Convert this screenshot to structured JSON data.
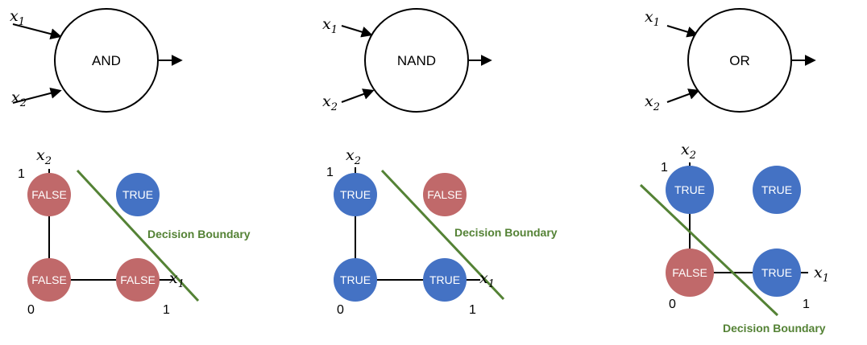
{
  "colors": {
    "true_node": "#4472c4",
    "false_node": "#c0696a",
    "boundary": "#548235",
    "axis": "#000000"
  },
  "panels": [
    {
      "gate": {
        "label": "AND",
        "inputs": [
          {
            "base": "x",
            "sub": "1"
          },
          {
            "base": "x",
            "sub": "2"
          }
        ]
      },
      "plot": {
        "axis_x": {
          "base": "x",
          "sub": "1"
        },
        "axis_y": {
          "base": "x",
          "sub": "2"
        },
        "tick_origin": "0",
        "tick_x": "1",
        "tick_y": "1",
        "nodes": [
          {
            "x1": 0,
            "x2": 1,
            "value": "FALSE"
          },
          {
            "x1": 1,
            "x2": 1,
            "value": "TRUE"
          },
          {
            "x1": 0,
            "x2": 0,
            "value": "FALSE"
          },
          {
            "x1": 1,
            "x2": 0,
            "value": "FALSE"
          }
        ],
        "boundary_label": "Decision Boundary"
      }
    },
    {
      "gate": {
        "label": "NAND",
        "inputs": [
          {
            "base": "x",
            "sub": "1"
          },
          {
            "base": "x",
            "sub": "2"
          }
        ]
      },
      "plot": {
        "axis_x": {
          "base": "x",
          "sub": "1"
        },
        "axis_y": {
          "base": "x",
          "sub": "2"
        },
        "tick_origin": "0",
        "tick_x": "1",
        "tick_y": "1",
        "nodes": [
          {
            "x1": 0,
            "x2": 1,
            "value": "TRUE"
          },
          {
            "x1": 1,
            "x2": 1,
            "value": "FALSE"
          },
          {
            "x1": 0,
            "x2": 0,
            "value": "TRUE"
          },
          {
            "x1": 1,
            "x2": 0,
            "value": "TRUE"
          }
        ],
        "boundary_label": "Decision Boundary"
      }
    },
    {
      "gate": {
        "label": "OR",
        "inputs": [
          {
            "base": "x",
            "sub": "1"
          },
          {
            "base": "x",
            "sub": "2"
          }
        ]
      },
      "plot": {
        "axis_x": {
          "base": "x",
          "sub": "1"
        },
        "axis_y": {
          "base": "x",
          "sub": "2"
        },
        "tick_origin": "0",
        "tick_x": "1",
        "tick_y": "1",
        "nodes": [
          {
            "x1": 0,
            "x2": 1,
            "value": "TRUE"
          },
          {
            "x1": 1,
            "x2": 1,
            "value": "TRUE"
          },
          {
            "x1": 0,
            "x2": 0,
            "value": "FALSE"
          },
          {
            "x1": 1,
            "x2": 0,
            "value": "TRUE"
          }
        ],
        "boundary_label": "Decision Boundary"
      }
    }
  ]
}
